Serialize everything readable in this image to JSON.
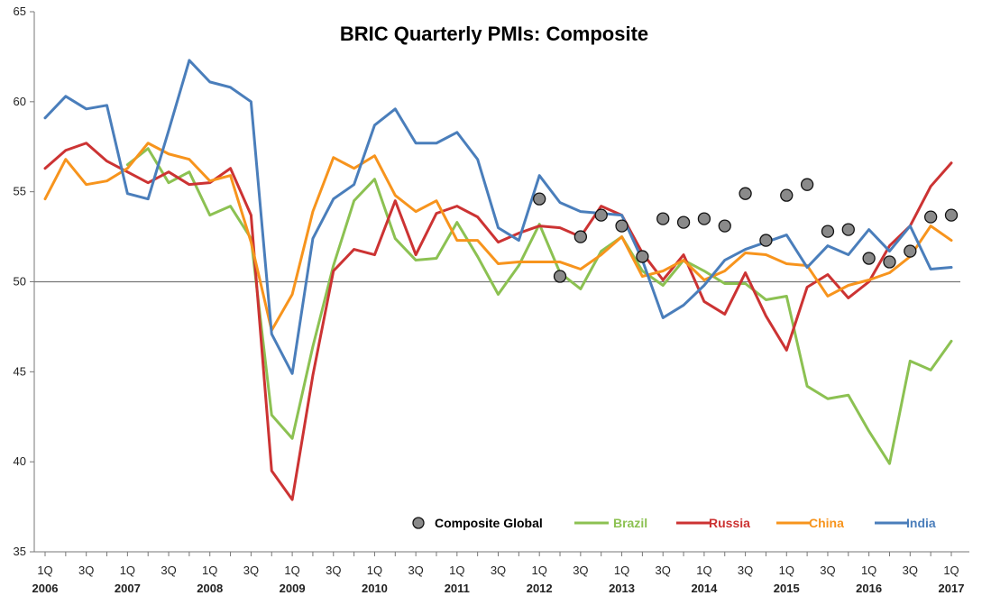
{
  "chart_data": {
    "type": "line",
    "title": "BRIC Quarterly PMIs: Composite",
    "xlabel": "",
    "ylabel": "",
    "ylim": [
      35,
      65
    ],
    "yticks": [
      35,
      40,
      45,
      50,
      55,
      60,
      65
    ],
    "reference_line": 50,
    "grid": false,
    "legend_position": "bottom-right",
    "x": [
      "1Q 2006",
      "2Q 2006",
      "3Q 2006",
      "4Q 2006",
      "1Q 2007",
      "2Q 2007",
      "3Q 2007",
      "4Q 2007",
      "1Q 2008",
      "2Q 2008",
      "3Q 2008",
      "4Q 2008",
      "1Q 2009",
      "2Q 2009",
      "3Q 2009",
      "4Q 2009",
      "1Q 2010",
      "2Q 2010",
      "3Q 2010",
      "4Q 2010",
      "1Q 2011",
      "2Q 2011",
      "3Q 2011",
      "4Q 2011",
      "1Q 2012",
      "2Q 2012",
      "3Q 2012",
      "4Q 2012",
      "1Q 2013",
      "2Q 2013",
      "3Q 2013",
      "4Q 2013",
      "1Q 2014",
      "2Q 2014",
      "3Q 2014",
      "4Q 2014",
      "1Q 2015",
      "2Q 2015",
      "3Q 2015",
      "4Q 2015",
      "1Q 2016",
      "2Q 2016",
      "3Q 2016",
      "4Q 2016",
      "1Q 2017"
    ],
    "x_tick_labels": [
      {
        "q": "1Q",
        "year": "2006"
      },
      {
        "q": "3Q",
        "year": ""
      },
      {
        "q": "1Q",
        "year": "2007"
      },
      {
        "q": "3Q",
        "year": ""
      },
      {
        "q": "1Q",
        "year": "2008"
      },
      {
        "q": "3Q",
        "year": ""
      },
      {
        "q": "1Q",
        "year": "2009"
      },
      {
        "q": "3Q",
        "year": ""
      },
      {
        "q": "1Q",
        "year": "2010"
      },
      {
        "q": "3Q",
        "year": ""
      },
      {
        "q": "1Q",
        "year": "2011"
      },
      {
        "q": "3Q",
        "year": ""
      },
      {
        "q": "1Q",
        "year": "2012"
      },
      {
        "q": "3Q",
        "year": ""
      },
      {
        "q": "1Q",
        "year": "2013"
      },
      {
        "q": "3Q",
        "year": ""
      },
      {
        "q": "1Q",
        "year": "2014"
      },
      {
        "q": "3Q",
        "year": ""
      },
      {
        "q": "1Q",
        "year": "2015"
      },
      {
        "q": "3Q",
        "year": ""
      },
      {
        "q": "1Q",
        "year": "2016"
      },
      {
        "q": "3Q",
        "year": ""
      },
      {
        "q": "1Q",
        "year": "2017"
      }
    ],
    "series": [
      {
        "name": "Brazil",
        "color": "#8cc152",
        "style": "line",
        "values": [
          null,
          null,
          null,
          null,
          56.5,
          57.4,
          55.5,
          56.1,
          53.7,
          54.2,
          52.4,
          42.6,
          41.3,
          46.4,
          50.9,
          54.5,
          55.7,
          52.4,
          51.2,
          51.3,
          53.3,
          51.4,
          49.3,
          50.9,
          53.2,
          50.5,
          49.6,
          51.7,
          52.5,
          50.6,
          49.8,
          51.2,
          50.6,
          49.9,
          49.9,
          49.0,
          49.2,
          44.2,
          43.5,
          43.7,
          41.7,
          39.9,
          45.6,
          45.1,
          46.7
        ]
      },
      {
        "name": "Russia",
        "color": "#cc3333",
        "style": "line",
        "values": [
          56.3,
          57.3,
          57.7,
          56.7,
          56.1,
          55.5,
          56.1,
          55.4,
          55.5,
          56.3,
          53.7,
          39.5,
          37.9,
          44.8,
          50.6,
          51.8,
          51.5,
          54.5,
          51.5,
          53.8,
          54.2,
          53.6,
          52.2,
          52.7,
          53.1,
          53.0,
          52.5,
          54.2,
          53.7,
          51.6,
          50.1,
          51.5,
          48.9,
          48.2,
          50.5,
          48.1,
          46.2,
          49.7,
          50.4,
          49.1,
          50.0,
          52.0,
          53.1,
          55.3,
          56.6
        ]
      },
      {
        "name": "China",
        "color": "#f7941d",
        "style": "line",
        "values": [
          54.6,
          56.8,
          55.4,
          55.6,
          56.3,
          57.7,
          57.1,
          56.8,
          55.6,
          55.9,
          52.2,
          47.3,
          49.3,
          53.9,
          56.9,
          56.3,
          57.0,
          54.8,
          53.9,
          54.5,
          52.3,
          52.3,
          51.0,
          51.1,
          51.1,
          51.1,
          50.7,
          51.5,
          52.5,
          50.3,
          50.6,
          51.2,
          50.1,
          50.6,
          51.6,
          51.5,
          51.0,
          50.9,
          49.2,
          49.8,
          50.1,
          50.5,
          51.4,
          53.1,
          52.3
        ]
      },
      {
        "name": "India",
        "color": "#4a7ebb",
        "style": "line",
        "values": [
          59.1,
          60.3,
          59.6,
          59.8,
          54.9,
          54.6,
          58.4,
          62.3,
          61.1,
          60.8,
          60.0,
          47.1,
          44.9,
          52.4,
          54.6,
          55.4,
          58.7,
          59.6,
          57.7,
          57.7,
          58.3,
          56.8,
          53.0,
          52.3,
          55.9,
          54.4,
          53.9,
          53.8,
          53.7,
          51.2,
          48.0,
          48.7,
          49.8,
          51.2,
          51.8,
          52.2,
          52.6,
          50.8,
          52.0,
          51.5,
          52.9,
          51.7,
          53.1,
          50.7,
          50.8
        ]
      },
      {
        "name": "Composite Global",
        "color": "#888888",
        "style": "markers",
        "values": [
          null,
          null,
          null,
          null,
          null,
          null,
          null,
          null,
          null,
          null,
          null,
          null,
          null,
          null,
          null,
          null,
          null,
          null,
          null,
          null,
          null,
          null,
          null,
          null,
          54.6,
          50.3,
          52.5,
          53.7,
          53.1,
          51.4,
          53.5,
          53.3,
          53.5,
          53.1,
          54.9,
          52.3,
          54.8,
          55.4,
          52.8,
          52.9,
          51.3,
          51.1,
          51.7,
          53.6,
          53.7
        ]
      }
    ],
    "legend": [
      {
        "name": "Composite Global",
        "color": "#000000",
        "marker": "circle"
      },
      {
        "name": "Brazil",
        "color": "#8cc152",
        "marker": "line"
      },
      {
        "name": "Russia",
        "color": "#cc3333",
        "marker": "line"
      },
      {
        "name": "China",
        "color": "#f7941d",
        "marker": "line"
      },
      {
        "name": "India",
        "color": "#4a7ebb",
        "marker": "line"
      }
    ]
  }
}
